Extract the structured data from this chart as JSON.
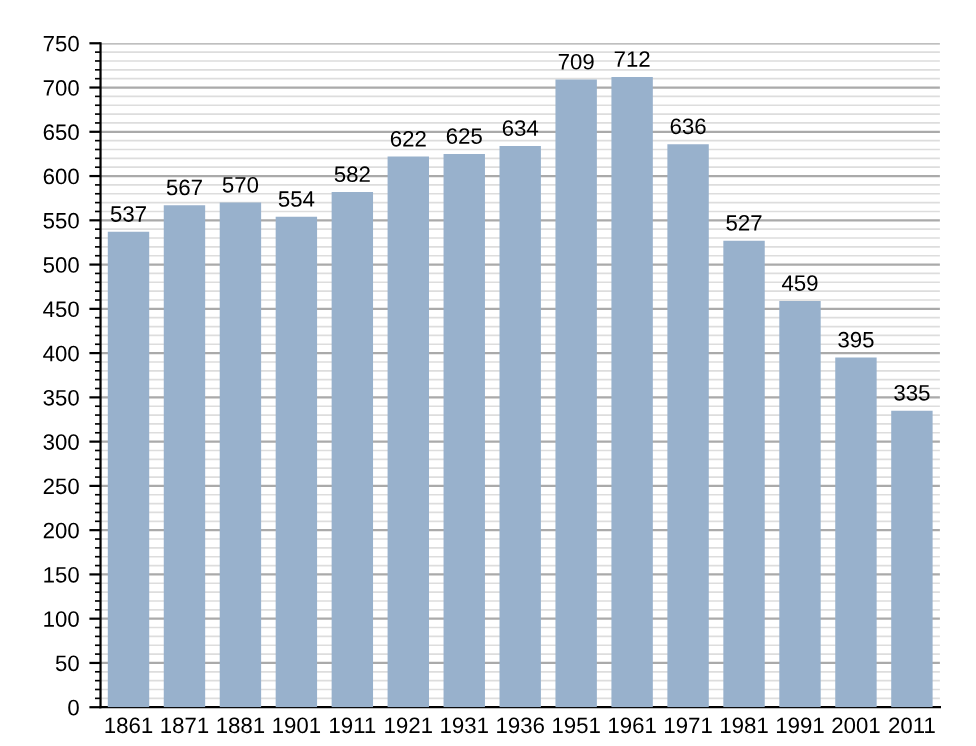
{
  "chart_data": {
    "type": "bar",
    "categories": [
      "1861",
      "1871",
      "1881",
      "1901",
      "1911",
      "1921",
      "1931",
      "1936",
      "1951",
      "1961",
      "1971",
      "1981",
      "1991",
      "2001",
      "2011"
    ],
    "values": [
      537,
      567,
      570,
      554,
      582,
      622,
      625,
      634,
      709,
      712,
      636,
      527,
      459,
      395,
      335
    ],
    "color": "#98b1cc",
    "ylim": [
      0,
      750
    ],
    "yticks": [
      0,
      50,
      100,
      150,
      200,
      250,
      300,
      350,
      400,
      450,
      500,
      550,
      600,
      650,
      700,
      750
    ],
    "grid": "y",
    "data_labels": true
  }
}
